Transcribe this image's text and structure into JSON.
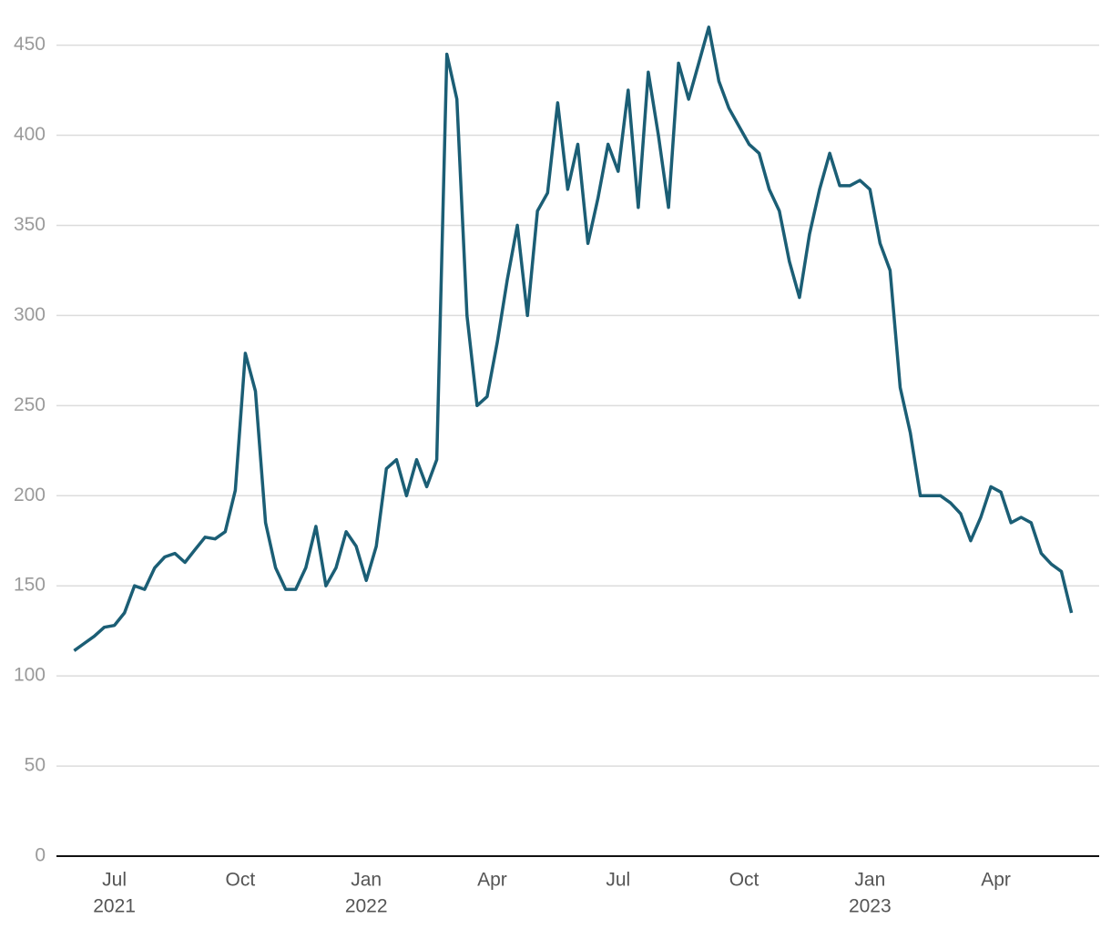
{
  "chart_data": {
    "type": "line",
    "x": [
      2021.42,
      2021.44,
      2021.46,
      2021.48,
      2021.5,
      2021.52,
      2021.54,
      2021.56,
      2021.58,
      2021.6,
      2021.62,
      2021.64,
      2021.66,
      2021.68,
      2021.7,
      2021.72,
      2021.74,
      2021.76,
      2021.78,
      2021.8,
      2021.82,
      2021.84,
      2021.86,
      2021.88,
      2021.9,
      2021.92,
      2021.94,
      2021.96,
      2021.98,
      2022.0,
      2022.02,
      2022.04,
      2022.06,
      2022.08,
      2022.1,
      2022.12,
      2022.14,
      2022.16,
      2022.18,
      2022.2,
      2022.22,
      2022.24,
      2022.26,
      2022.28,
      2022.3,
      2022.32,
      2022.34,
      2022.36,
      2022.38,
      2022.4,
      2022.42,
      2022.44,
      2022.46,
      2022.48,
      2022.5,
      2022.52,
      2022.54,
      2022.56,
      2022.58,
      2022.6,
      2022.62,
      2022.64,
      2022.66,
      2022.68,
      2022.7,
      2022.72,
      2022.74,
      2022.76,
      2022.78,
      2022.8,
      2022.82,
      2022.84,
      2022.86,
      2022.88,
      2022.9,
      2022.92,
      2022.94,
      2022.96,
      2022.98,
      2023.0,
      2023.02,
      2023.04,
      2023.06,
      2023.08,
      2023.1,
      2023.12,
      2023.14,
      2023.16,
      2023.18,
      2023.2,
      2023.22,
      2023.24,
      2023.26,
      2023.28,
      2023.3,
      2023.32,
      2023.34,
      2023.36,
      2023.38,
      2023.4
    ],
    "series": [
      {
        "color": "#1b5e75",
        "values": [
          114,
          118,
          122,
          127,
          128,
          135,
          150,
          148,
          160,
          166,
          168,
          163,
          170,
          177,
          176,
          180,
          203,
          279,
          258,
          185,
          160,
          148,
          148,
          160,
          183,
          150,
          160,
          180,
          172,
          153,
          172,
          215,
          220,
          200,
          220,
          205,
          220,
          445,
          420,
          300,
          250,
          255,
          285,
          320,
          350,
          300,
          358,
          368,
          418,
          370,
          395,
          340,
          365,
          395,
          380,
          425,
          360,
          435,
          400,
          360,
          440,
          420,
          440,
          460,
          430,
          415,
          405,
          395,
          390,
          370,
          358,
          330,
          310,
          345,
          370,
          390,
          372,
          372,
          375,
          370,
          340,
          325,
          260,
          235,
          200,
          200,
          200,
          196,
          190,
          175,
          188,
          205,
          202,
          185,
          188,
          185,
          168,
          162,
          158,
          135
        ]
      }
    ],
    "xlim": [
      2021.385,
      2023.455
    ],
    "xticks": [
      {
        "value": 2021.5,
        "label": "Jul",
        "year": "2021"
      },
      {
        "value": 2021.75,
        "label": "Oct"
      },
      {
        "value": 2022.0,
        "label": "Jan",
        "year": "2022"
      },
      {
        "value": 2022.25,
        "label": "Apr"
      },
      {
        "value": 2022.5,
        "label": "Jul"
      },
      {
        "value": 2022.75,
        "label": "Oct"
      },
      {
        "value": 2023.0,
        "label": "Jan",
        "year": "2023"
      },
      {
        "value": 2023.25,
        "label": "Apr"
      }
    ],
    "ylim": [
      0,
      470
    ],
    "yticks": [
      0,
      50,
      100,
      150,
      200,
      250,
      300,
      350,
      400,
      450
    ],
    "grid": true
  }
}
